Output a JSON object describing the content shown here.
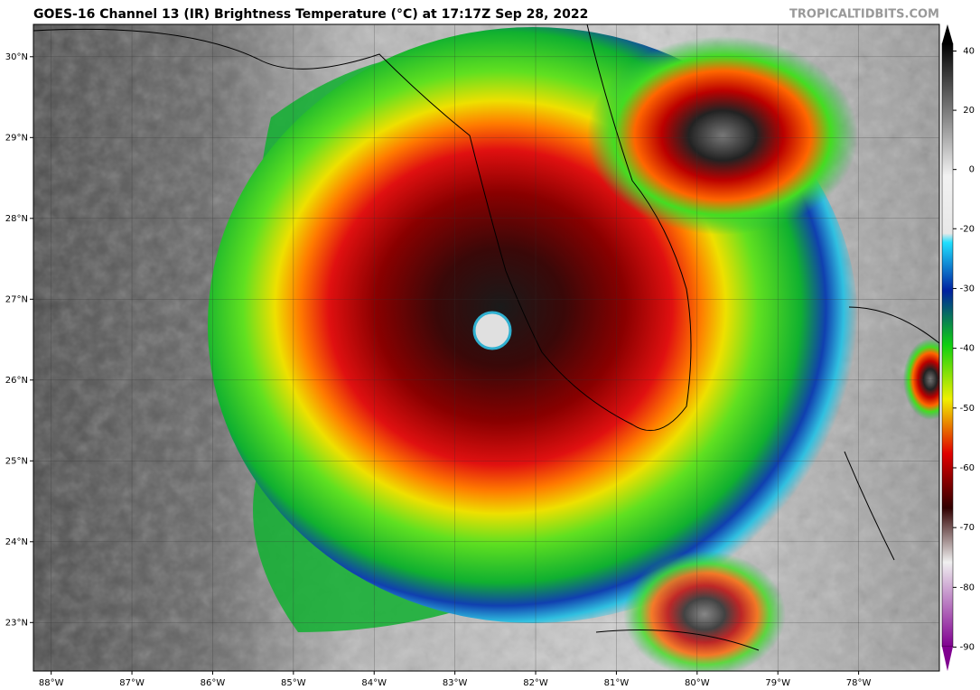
{
  "title": "GOES-16 Channel 13 (IR) Brightness Temperature (°C) at 17:17Z Sep 28, 2022",
  "watermark": "TROPICALTIDBITS.COM",
  "map": {
    "latlim": [
      22.4,
      30.4
    ],
    "lonlim": [
      -88.22,
      -77.0
    ],
    "latticks": [
      {
        "value": 30,
        "label": "30°N"
      },
      {
        "value": 29,
        "label": "29°N"
      },
      {
        "value": 28,
        "label": "28°N"
      },
      {
        "value": 27,
        "label": "27°N"
      },
      {
        "value": 26,
        "label": "26°N"
      },
      {
        "value": 25,
        "label": "25°N"
      },
      {
        "value": 24,
        "label": "24°N"
      },
      {
        "value": 23,
        "label": "23°N"
      }
    ],
    "lonticks": [
      {
        "value": -88,
        "label": "88°W"
      },
      {
        "value": -87,
        "label": "87°W"
      },
      {
        "value": -86,
        "label": "86°W"
      },
      {
        "value": -85,
        "label": "85°W"
      },
      {
        "value": -84,
        "label": "84°W"
      },
      {
        "value": -83,
        "label": "83°W"
      },
      {
        "value": -82,
        "label": "82°W"
      },
      {
        "value": -81,
        "label": "81°W"
      },
      {
        "value": -80,
        "label": "80°W"
      },
      {
        "value": -79,
        "label": "79°W"
      },
      {
        "value": -78,
        "label": "78°W"
      }
    ]
  },
  "colorbar": {
    "lim": [
      -94,
      49
    ],
    "ticks": [
      40,
      20,
      0,
      -20,
      -30,
      -40,
      -50,
      -60,
      -70,
      -80,
      -90
    ]
  }
}
